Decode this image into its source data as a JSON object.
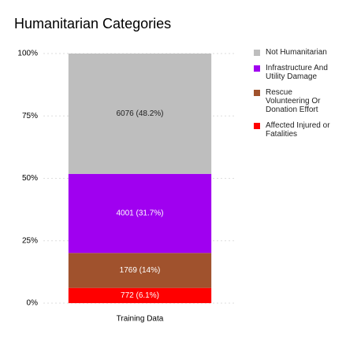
{
  "chart_data": {
    "type": "stacked_bar",
    "title": "Humanitarian Categories",
    "categories": [
      "Training Data"
    ],
    "series": [
      {
        "name": "Not Humanitarian",
        "color": "#bebebe",
        "values": [
          48.2
        ],
        "value_labels": [
          "6076 (48.2%)"
        ]
      },
      {
        "name": "Infrastructure And Utility Damage",
        "color": "#a000f0",
        "values": [
          31.7
        ],
        "value_labels": [
          "4001 (31.7%)"
        ]
      },
      {
        "name": "Rescue Volunteering Or Donation Effort",
        "color": "#a0522d",
        "values": [
          14
        ],
        "value_labels": [
          "1769 (14%)"
        ]
      },
      {
        "name": "Affected Injured or Fatalities",
        "color": "#ff0000",
        "values": [
          6.1
        ],
        "value_labels": [
          "772 (6.1%)"
        ]
      }
    ],
    "ylim": [
      0,
      100
    ],
    "yticks": [
      {
        "value": 0,
        "label": "0%"
      },
      {
        "value": 25,
        "label": "25%"
      },
      {
        "value": 50,
        "label": "50%"
      },
      {
        "value": 75,
        "label": "75%"
      },
      {
        "value": 100,
        "label": "100%"
      }
    ],
    "grid": true,
    "legend": "right"
  }
}
